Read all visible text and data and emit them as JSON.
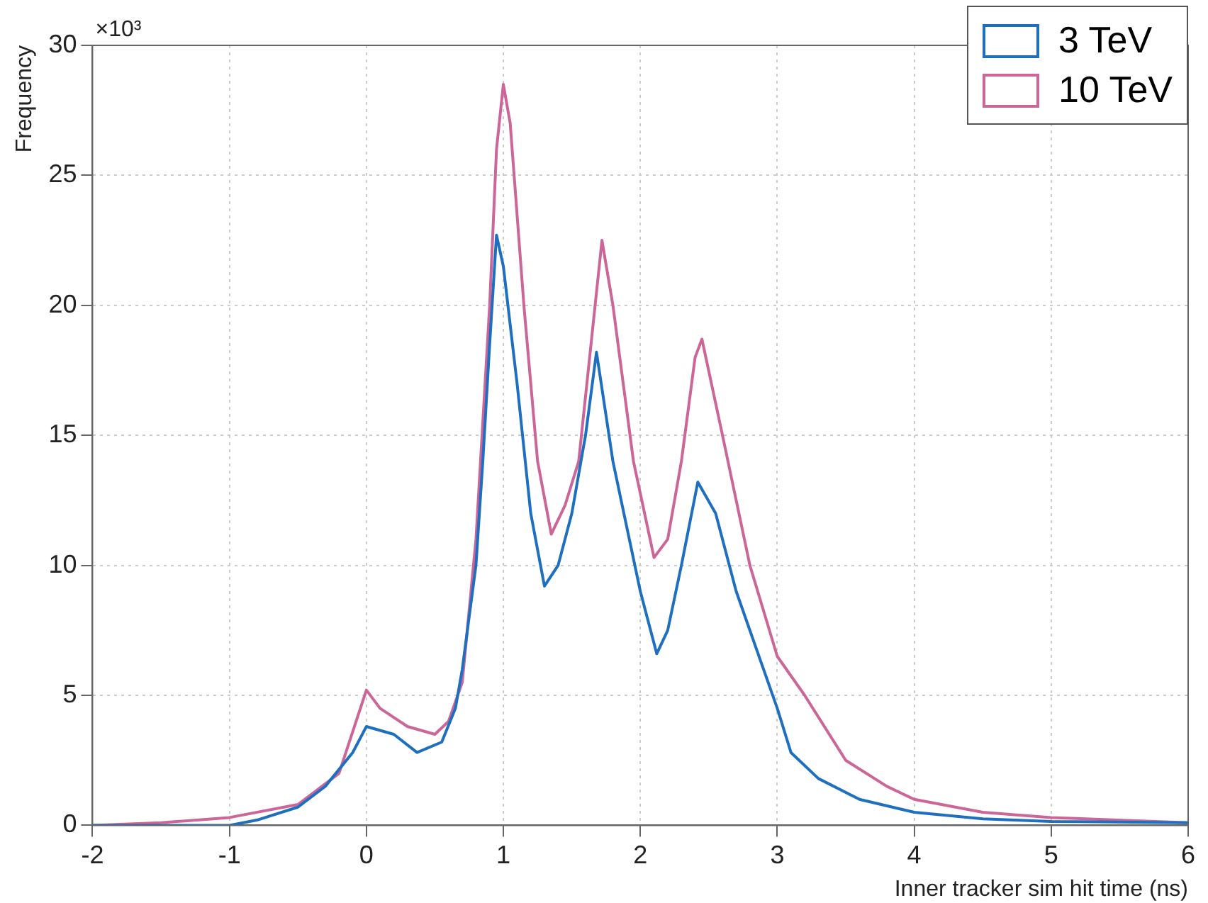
{
  "chart_data": {
    "type": "line",
    "xlabel": "Inner tracker sim hit time (ns)",
    "ylabel": "Frequency",
    "annotations": [
      "×10³"
    ],
    "xlim": [
      -2,
      6
    ],
    "xticks": [
      -2,
      -1,
      0,
      1,
      2,
      3,
      4,
      5,
      6
    ],
    "ylim": [
      0,
      30
    ],
    "yticks": [
      0,
      5,
      10,
      15,
      20,
      25,
      30
    ],
    "grid": true,
    "legend": "top right",
    "marker": "none",
    "line_style": "solid",
    "series": [
      {
        "name": "3 TeV",
        "color": "#1f6fc0",
        "x": [
          -2,
          -1.5,
          -1,
          -0.8,
          -0.5,
          -0.3,
          -0.1,
          0,
          0.2,
          0.37,
          0.55,
          0.65,
          0.7,
          0.8,
          0.85,
          0.9,
          0.95,
          1.0,
          1.1,
          1.2,
          1.3,
          1.4,
          1.5,
          1.6,
          1.68,
          1.8,
          2.0,
          2.12,
          2.2,
          2.3,
          2.42,
          2.55,
          2.7,
          2.9,
          3.0,
          3.1,
          3.3,
          3.6,
          4.0,
          4.5,
          5,
          6
        ],
        "values": [
          0,
          0,
          0,
          0.2,
          0.7,
          1.5,
          2.8,
          3.8,
          3.5,
          2.8,
          3.2,
          4.5,
          6,
          10,
          14,
          18.5,
          22.7,
          21.5,
          17,
          12,
          9.2,
          10,
          12,
          15,
          18.2,
          14,
          9,
          6.6,
          7.5,
          10,
          13.2,
          12,
          9,
          6,
          4.5,
          2.8,
          1.8,
          1.0,
          0.5,
          0.25,
          0.15,
          0.1
        ]
      },
      {
        "name": "10 TeV",
        "color": "#cc6699",
        "x": [
          -2,
          -1.5,
          -1,
          -0.5,
          -0.2,
          0,
          0.1,
          0.3,
          0.5,
          0.6,
          0.7,
          0.8,
          0.9,
          0.95,
          1.0,
          1.05,
          1.15,
          1.25,
          1.35,
          1.45,
          1.55,
          1.65,
          1.72,
          1.8,
          1.95,
          2.1,
          2.2,
          2.3,
          2.4,
          2.45,
          2.6,
          2.8,
          3.0,
          3.2,
          3.5,
          3.8,
          4,
          4.5,
          5,
          6
        ],
        "values": [
          0,
          0.1,
          0.3,
          0.8,
          2,
          5.2,
          4.5,
          3.8,
          3.5,
          4,
          5.5,
          11,
          20,
          26,
          28.5,
          27,
          20,
          14,
          11.2,
          12.3,
          14,
          19,
          22.5,
          20,
          14,
          10.3,
          11,
          14,
          18,
          18.7,
          15,
          10,
          6.5,
          5,
          2.5,
          1.5,
          1.0,
          0.5,
          0.3,
          0.1
        ]
      }
    ]
  }
}
